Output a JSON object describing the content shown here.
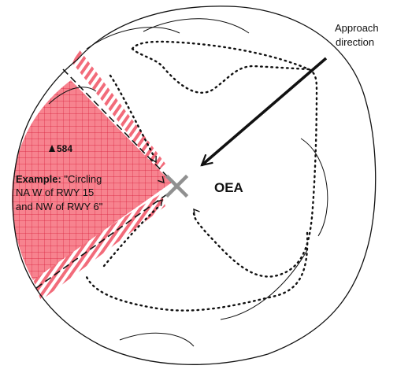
{
  "labels": {
    "approach_line1": "Approach",
    "approach_line2": "direction",
    "oea": "OEA",
    "obstacle_elevation": "584",
    "example_prefix": "Example:",
    "example_line1_rest": " \"Circling",
    "example_line2": "NA W of RWY 15",
    "example_line3": "and NW of RWY 6\""
  },
  "colors": {
    "restricted_fill": "#f7838f",
    "restricted_grid": "#d81e3a",
    "stripe": "#f26b7a",
    "outline": "#111111",
    "center_mark": "#909090"
  }
}
